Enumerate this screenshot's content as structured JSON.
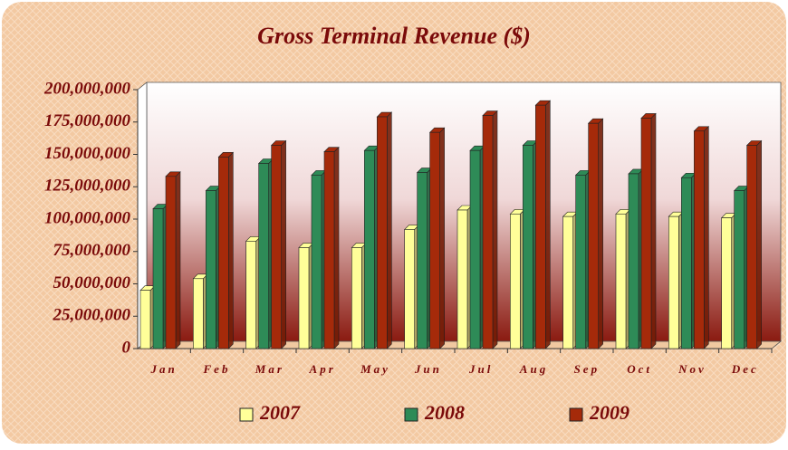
{
  "chart_data": {
    "type": "bar",
    "title": "Gross Terminal Revenue ($)",
    "categories": [
      "Jan",
      "Feb",
      "Mar",
      "Apr",
      "May",
      "Jun",
      "Jul",
      "Aug",
      "Sep",
      "Oct",
      "Nov",
      "Dec"
    ],
    "series": [
      {
        "name": "2007",
        "color": "#ffff99",
        "values": [
          45000000,
          54000000,
          83000000,
          78000000,
          78000000,
          92000000,
          107000000,
          104000000,
          102000000,
          104000000,
          102000000,
          101000000
        ]
      },
      {
        "name": "2008",
        "color": "#2e8b57",
        "values": [
          108000000,
          122000000,
          143000000,
          134000000,
          153000000,
          136000000,
          153000000,
          157000000,
          134000000,
          135000000,
          132000000,
          122000000
        ]
      },
      {
        "name": "2009",
        "color": "#a52a0a",
        "values": [
          133000000,
          148000000,
          157000000,
          152000000,
          179000000,
          167000000,
          180000000,
          188000000,
          174000000,
          178000000,
          168000000,
          157000000
        ]
      }
    ],
    "ylim": [
      0,
      200000000
    ],
    "yticks": [
      0,
      {
        "value": 25000000,
        "label": "25,000,000"
      },
      {
        "value": 50000000,
        "label": "50,000,000"
      },
      {
        "value": 75000000,
        "label": "75,000,000"
      },
      {
        "value": 100000000,
        "label": "100,000,000"
      },
      {
        "value": 125000000,
        "label": "125,000,000"
      },
      {
        "value": 150000000,
        "label": "150,000,000"
      },
      {
        "value": 175000000,
        "label": "175,000,000"
      },
      {
        "value": 200000000,
        "label": "200,000,000"
      }
    ],
    "legend": "bottom"
  }
}
